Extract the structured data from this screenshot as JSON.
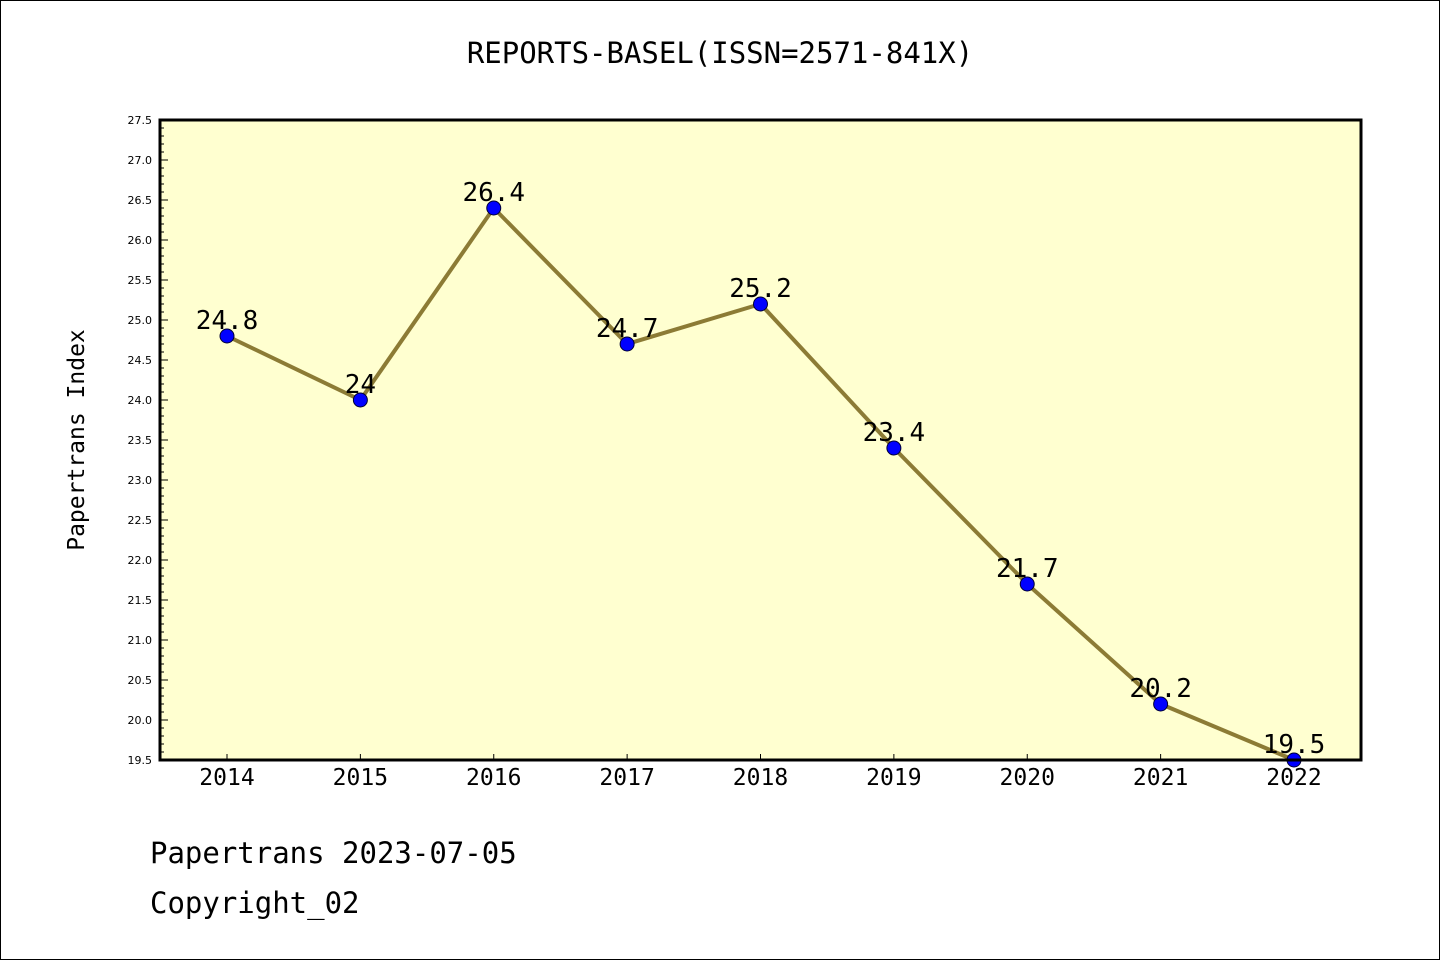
{
  "chart_data": {
    "type": "line",
    "title": "REPORTS-BASEL(ISSN=2571-841X)",
    "ylabel": "Papertrans Index",
    "xlabel": "",
    "categories": [
      "2014",
      "2015",
      "2016",
      "2017",
      "2018",
      "2019",
      "2020",
      "2021",
      "2022"
    ],
    "values": [
      24.8,
      24,
      26.4,
      24.7,
      25.2,
      23.4,
      21.7,
      20.2,
      19.5
    ],
    "data_labels": [
      "24.8",
      "24",
      "26.4",
      "24.7",
      "25.2",
      "23.4",
      "21.7",
      "20.2",
      "19.5"
    ],
    "ylim": [
      19.5,
      27.5
    ],
    "y_ticks": [
      "19.5",
      "20.0",
      "20.5",
      "21.0",
      "21.5",
      "22.0",
      "22.5",
      "23.0",
      "23.5",
      "24.0",
      "24.5",
      "25.0",
      "25.5",
      "26.0",
      "26.5",
      "27.0",
      "27.5"
    ],
    "grid": false,
    "colors": {
      "plot_background": "#ffffd0",
      "line": "#8c7b35",
      "marker": "#0000ff"
    }
  },
  "footer": {
    "line1": "Papertrans 2023-07-05",
    "line2": "Copyright_02"
  }
}
